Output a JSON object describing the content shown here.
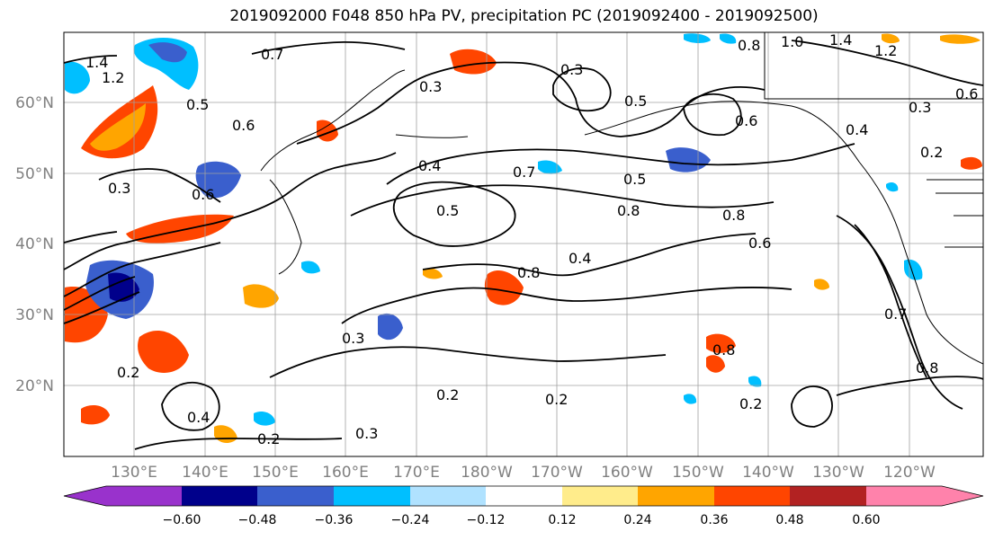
{
  "title": "2019092000 F048 850 hPa PV, precipitation PC (2019092400 - 2019092500)",
  "map": {
    "lat_labels": [
      "60°N",
      "50°N",
      "40°N",
      "30°N",
      "20°N"
    ],
    "lon_labels": [
      "130°E",
      "140°E",
      "150°E",
      "160°E",
      "170°E",
      "180°W",
      "170°W",
      "160°W",
      "150°W",
      "140°W",
      "130°W",
      "120°W"
    ],
    "contour_labels": [
      "1.4",
      "1.2",
      "0.5",
      "0.7",
      "0.6",
      "0.4",
      "0.3",
      "0.5",
      "0.3",
      "0.7",
      "0.5",
      "0.8",
      "0.6",
      "0.3",
      "0.2",
      "0.4",
      "0.8",
      "0.2",
      "0.2",
      "0.3",
      "0.2",
      "0.4",
      "0.3",
      "0.8",
      "0.6",
      "0.8",
      "0.4",
      "1.0",
      "1.4",
      "1.2",
      "0.6",
      "0.2",
      "0.3",
      "0.7",
      "0.8",
      "0.2",
      "0.5",
      "0.6",
      "0.8"
    ],
    "colors": {
      "neg_060": "#9932CC",
      "neg_048": "#00008B",
      "neg_036": "#3A5FCD",
      "neg_024": "#00BFFF",
      "neg_012": "#B0E2FF",
      "neutral": "#FFFFFF",
      "pos_012": "#FFEC8B",
      "pos_024": "#FFA500",
      "pos_036": "#FF4500",
      "pos_048": "#B22222",
      "pos_060": "#FF82AB"
    }
  },
  "colorbar": {
    "ticks": [
      "−0.60",
      "−0.48",
      "−0.36",
      "−0.24",
      "−0.12",
      "0.12",
      "0.24",
      "0.36",
      "0.48",
      "0.60"
    ]
  }
}
